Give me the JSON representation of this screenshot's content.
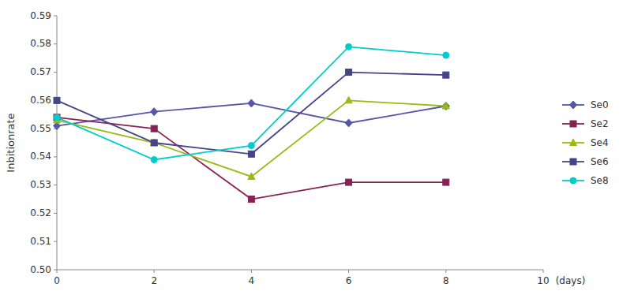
{
  "chart_data": {
    "type": "line",
    "ylabel": "Inbitionrate",
    "xlabel": "(days)",
    "x": [
      0,
      2,
      4,
      6,
      8
    ],
    "series": [
      {
        "name": "Se0",
        "color": "#5555aa",
        "marker": "diamond",
        "values": [
          0.551,
          0.556,
          0.559,
          0.552,
          0.558
        ]
      },
      {
        "name": "Se2",
        "color": "#882255",
        "marker": "square",
        "values": [
          0.554,
          0.55,
          0.525,
          0.531,
          0.531
        ]
      },
      {
        "name": "Se4",
        "color": "#99bb11",
        "marker": "triangle",
        "values": [
          0.553,
          0.545,
          0.533,
          0.56,
          0.558
        ]
      },
      {
        "name": "Se6",
        "color": "#444488",
        "marker": "square",
        "values": [
          0.56,
          0.545,
          0.541,
          0.57,
          0.569
        ]
      },
      {
        "name": "Se8",
        "color": "#00cccc",
        "marker": "circle",
        "values": [
          0.554,
          0.539,
          0.544,
          0.579,
          0.576
        ]
      }
    ],
    "xlim": [
      0,
      10
    ],
    "xticks": [
      0,
      2,
      4,
      6,
      8,
      10
    ],
    "ylim": [
      0.5,
      0.59
    ],
    "yticks": [
      {
        "value": 0.5,
        "label": "0.50"
      },
      0.51,
      0.52,
      0.53,
      0.54,
      0.55,
      0.56,
      0.57,
      0.58,
      0.59
    ],
    "grid": false,
    "legend": "right"
  }
}
